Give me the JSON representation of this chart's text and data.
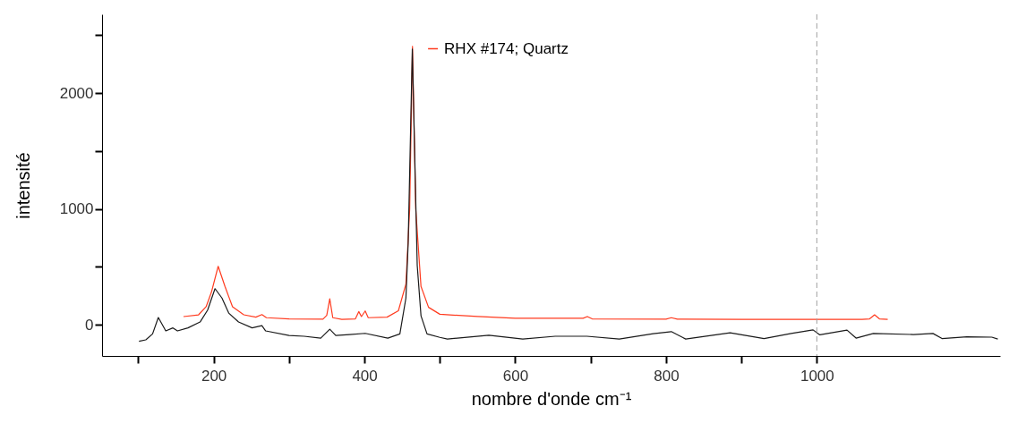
{
  "chart_data": {
    "type": "line",
    "xlabel": "nombre d'onde cm⁻¹",
    "ylabel": "intensité",
    "xlim": [
      52,
      1243
    ],
    "ylim": [
      -270,
      2680
    ],
    "xticks": [
      {
        "value": 100,
        "label": null
      },
      200,
      {
        "value": 300,
        "label": null
      },
      400,
      {
        "value": 500,
        "label": null
      },
      600,
      {
        "value": 700,
        "label": null
      },
      800,
      {
        "value": 900,
        "label": null
      },
      1000
    ],
    "yticks": [
      0,
      {
        "value": 500,
        "label": null
      },
      1000,
      {
        "value": 1500,
        "label": null
      },
      2000,
      {
        "value": 2500,
        "label": null
      }
    ],
    "grid": false,
    "legend": "top",
    "marker": "none",
    "line_style": "solid",
    "ref_lines": [
      {
        "axis": "x",
        "value": 1000,
        "label": null,
        "color": "#a0a0a0",
        "line_style": "dashed"
      }
    ],
    "series": [
      {
        "name": "RHX #174; Quartz",
        "color": "#ff3b1f",
        "x": [
          160,
          180,
          190,
          197,
          206,
          215,
          225,
          240,
          256,
          264,
          270,
          300,
          345,
          350,
          354,
          358,
          370,
          388,
          392.5,
          396,
          401,
          405,
          430,
          445,
          455,
          460,
          463.7,
          468,
          475,
          485,
          500,
          550,
          600,
          690,
          695.6,
          702,
          800,
          807,
          815,
          900,
          1000,
          1060,
          1070,
          1076.6,
          1083,
          1094
        ],
        "values": [
          70,
          85,
          155,
          280,
          504,
          330,
          155,
          85,
          65,
          87,
          60,
          50,
          48,
          80,
          224,
          60,
          45,
          50,
          113,
          70,
          118,
          60,
          65,
          120,
          350,
          1000,
          2404,
          1000,
          330,
          150,
          90,
          70,
          55,
          55,
          70,
          50,
          48,
          60,
          48,
          45,
          45,
          45,
          50,
          85,
          50,
          45
        ]
      },
      {
        "name": null,
        "color": "#1a1a1a",
        "x": [
          101,
          110,
          119,
          126.6,
          136.5,
          146,
          152,
          166,
          182,
          192,
          201.8,
          211,
          220,
          233,
          251,
          264,
          269,
          300,
          320,
          342,
          354,
          362,
          380,
          401,
          431,
          447,
          455,
          458,
          463.5,
          470,
          475,
          483,
          500,
          510,
          565,
          610,
          653,
          695,
          738,
          783,
          807,
          826,
          885,
          930,
          966,
          995,
          1004,
          1040,
          1052,
          1075,
          1128,
          1154,
          1166,
          1199,
          1232,
          1240
        ],
        "values": [
          -144,
          -131,
          -80,
          62,
          -54,
          -28,
          -54,
          -28,
          23,
          126,
          311,
          230,
          100,
          23,
          -28,
          -8,
          -54,
          -93,
          -100,
          -116,
          -39,
          -93,
          -85,
          -75,
          -116,
          -80,
          230,
          705,
          2380,
          512,
          77,
          -80,
          -110,
          -124,
          -91,
          -124,
          -100,
          -100,
          -124,
          -78,
          -60,
          -124,
          -70,
          -120,
          -76,
          -45,
          -88,
          -47,
          -116,
          -76,
          -85,
          -76,
          -120,
          -105,
          -108,
          -124
        ]
      }
    ]
  }
}
